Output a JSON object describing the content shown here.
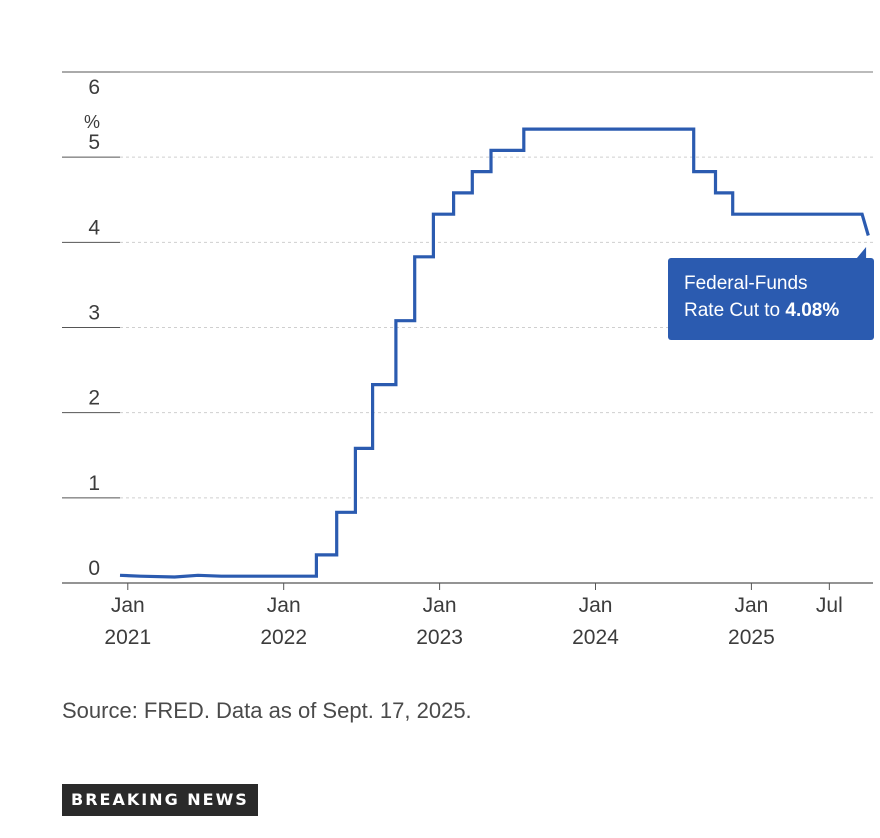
{
  "chart_data": {
    "type": "line",
    "title": "",
    "xlabel": "",
    "ylabel": "%",
    "ylim": [
      0,
      6
    ],
    "xlim": [
      2020.95,
      2025.78
    ],
    "yticks": [
      0,
      1,
      2,
      3,
      4,
      5,
      6
    ],
    "unit_label": "%",
    "x_ticks": [
      {
        "x": 2021.0,
        "month": "Jan",
        "year": "2021"
      },
      {
        "x": 2022.0,
        "month": "Jan",
        "year": "2022"
      },
      {
        "x": 2023.0,
        "month": "Jan",
        "year": "2023"
      },
      {
        "x": 2024.0,
        "month": "Jan",
        "year": "2024"
      },
      {
        "x": 2025.0,
        "month": "Jan",
        "year": "2025"
      },
      {
        "x": 2025.5,
        "month": "Jul",
        "year": ""
      }
    ],
    "series": [
      {
        "name": "Federal-Funds Rate",
        "color": "#2b5bb0",
        "points": [
          [
            2020.95,
            0.09
          ],
          [
            2021.08,
            0.08
          ],
          [
            2021.3,
            0.07
          ],
          [
            2021.45,
            0.09
          ],
          [
            2021.6,
            0.08
          ],
          [
            2022.0,
            0.08
          ],
          [
            2022.21,
            0.08
          ],
          [
            2022.21,
            0.33
          ],
          [
            2022.34,
            0.33
          ],
          [
            2022.34,
            0.83
          ],
          [
            2022.46,
            0.83
          ],
          [
            2022.46,
            1.58
          ],
          [
            2022.57,
            1.58
          ],
          [
            2022.57,
            2.33
          ],
          [
            2022.72,
            2.33
          ],
          [
            2022.72,
            3.08
          ],
          [
            2022.84,
            3.08
          ],
          [
            2022.84,
            3.83
          ],
          [
            2022.96,
            3.83
          ],
          [
            2022.96,
            4.33
          ],
          [
            2023.09,
            4.33
          ],
          [
            2023.09,
            4.58
          ],
          [
            2023.21,
            4.58
          ],
          [
            2023.21,
            4.83
          ],
          [
            2023.33,
            4.83
          ],
          [
            2023.33,
            5.08
          ],
          [
            2023.54,
            5.08
          ],
          [
            2023.54,
            5.33
          ],
          [
            2024.63,
            5.33
          ],
          [
            2024.63,
            4.83
          ],
          [
            2024.77,
            4.83
          ],
          [
            2024.77,
            4.58
          ],
          [
            2024.88,
            4.58
          ],
          [
            2024.88,
            4.33
          ],
          [
            2025.71,
            4.33
          ],
          [
            2025.75,
            4.08
          ]
        ]
      }
    ],
    "annotations": [
      {
        "text": "Federal-Funds Rate Cut to 4.08%",
        "x": 2025.71,
        "y": 4.08
      }
    ]
  },
  "callout": {
    "line1": "Federal-Funds",
    "line2_prefix": "Rate Cut to ",
    "value": "4.08%"
  },
  "source": "Source: FRED. Data as of Sept. 17, 2025.",
  "badge": "BREAKING NEWS",
  "colors": {
    "line": "#2b5bb0",
    "callout_bg": "#2b5bb0",
    "badge_bg": "#2a2a2a"
  }
}
